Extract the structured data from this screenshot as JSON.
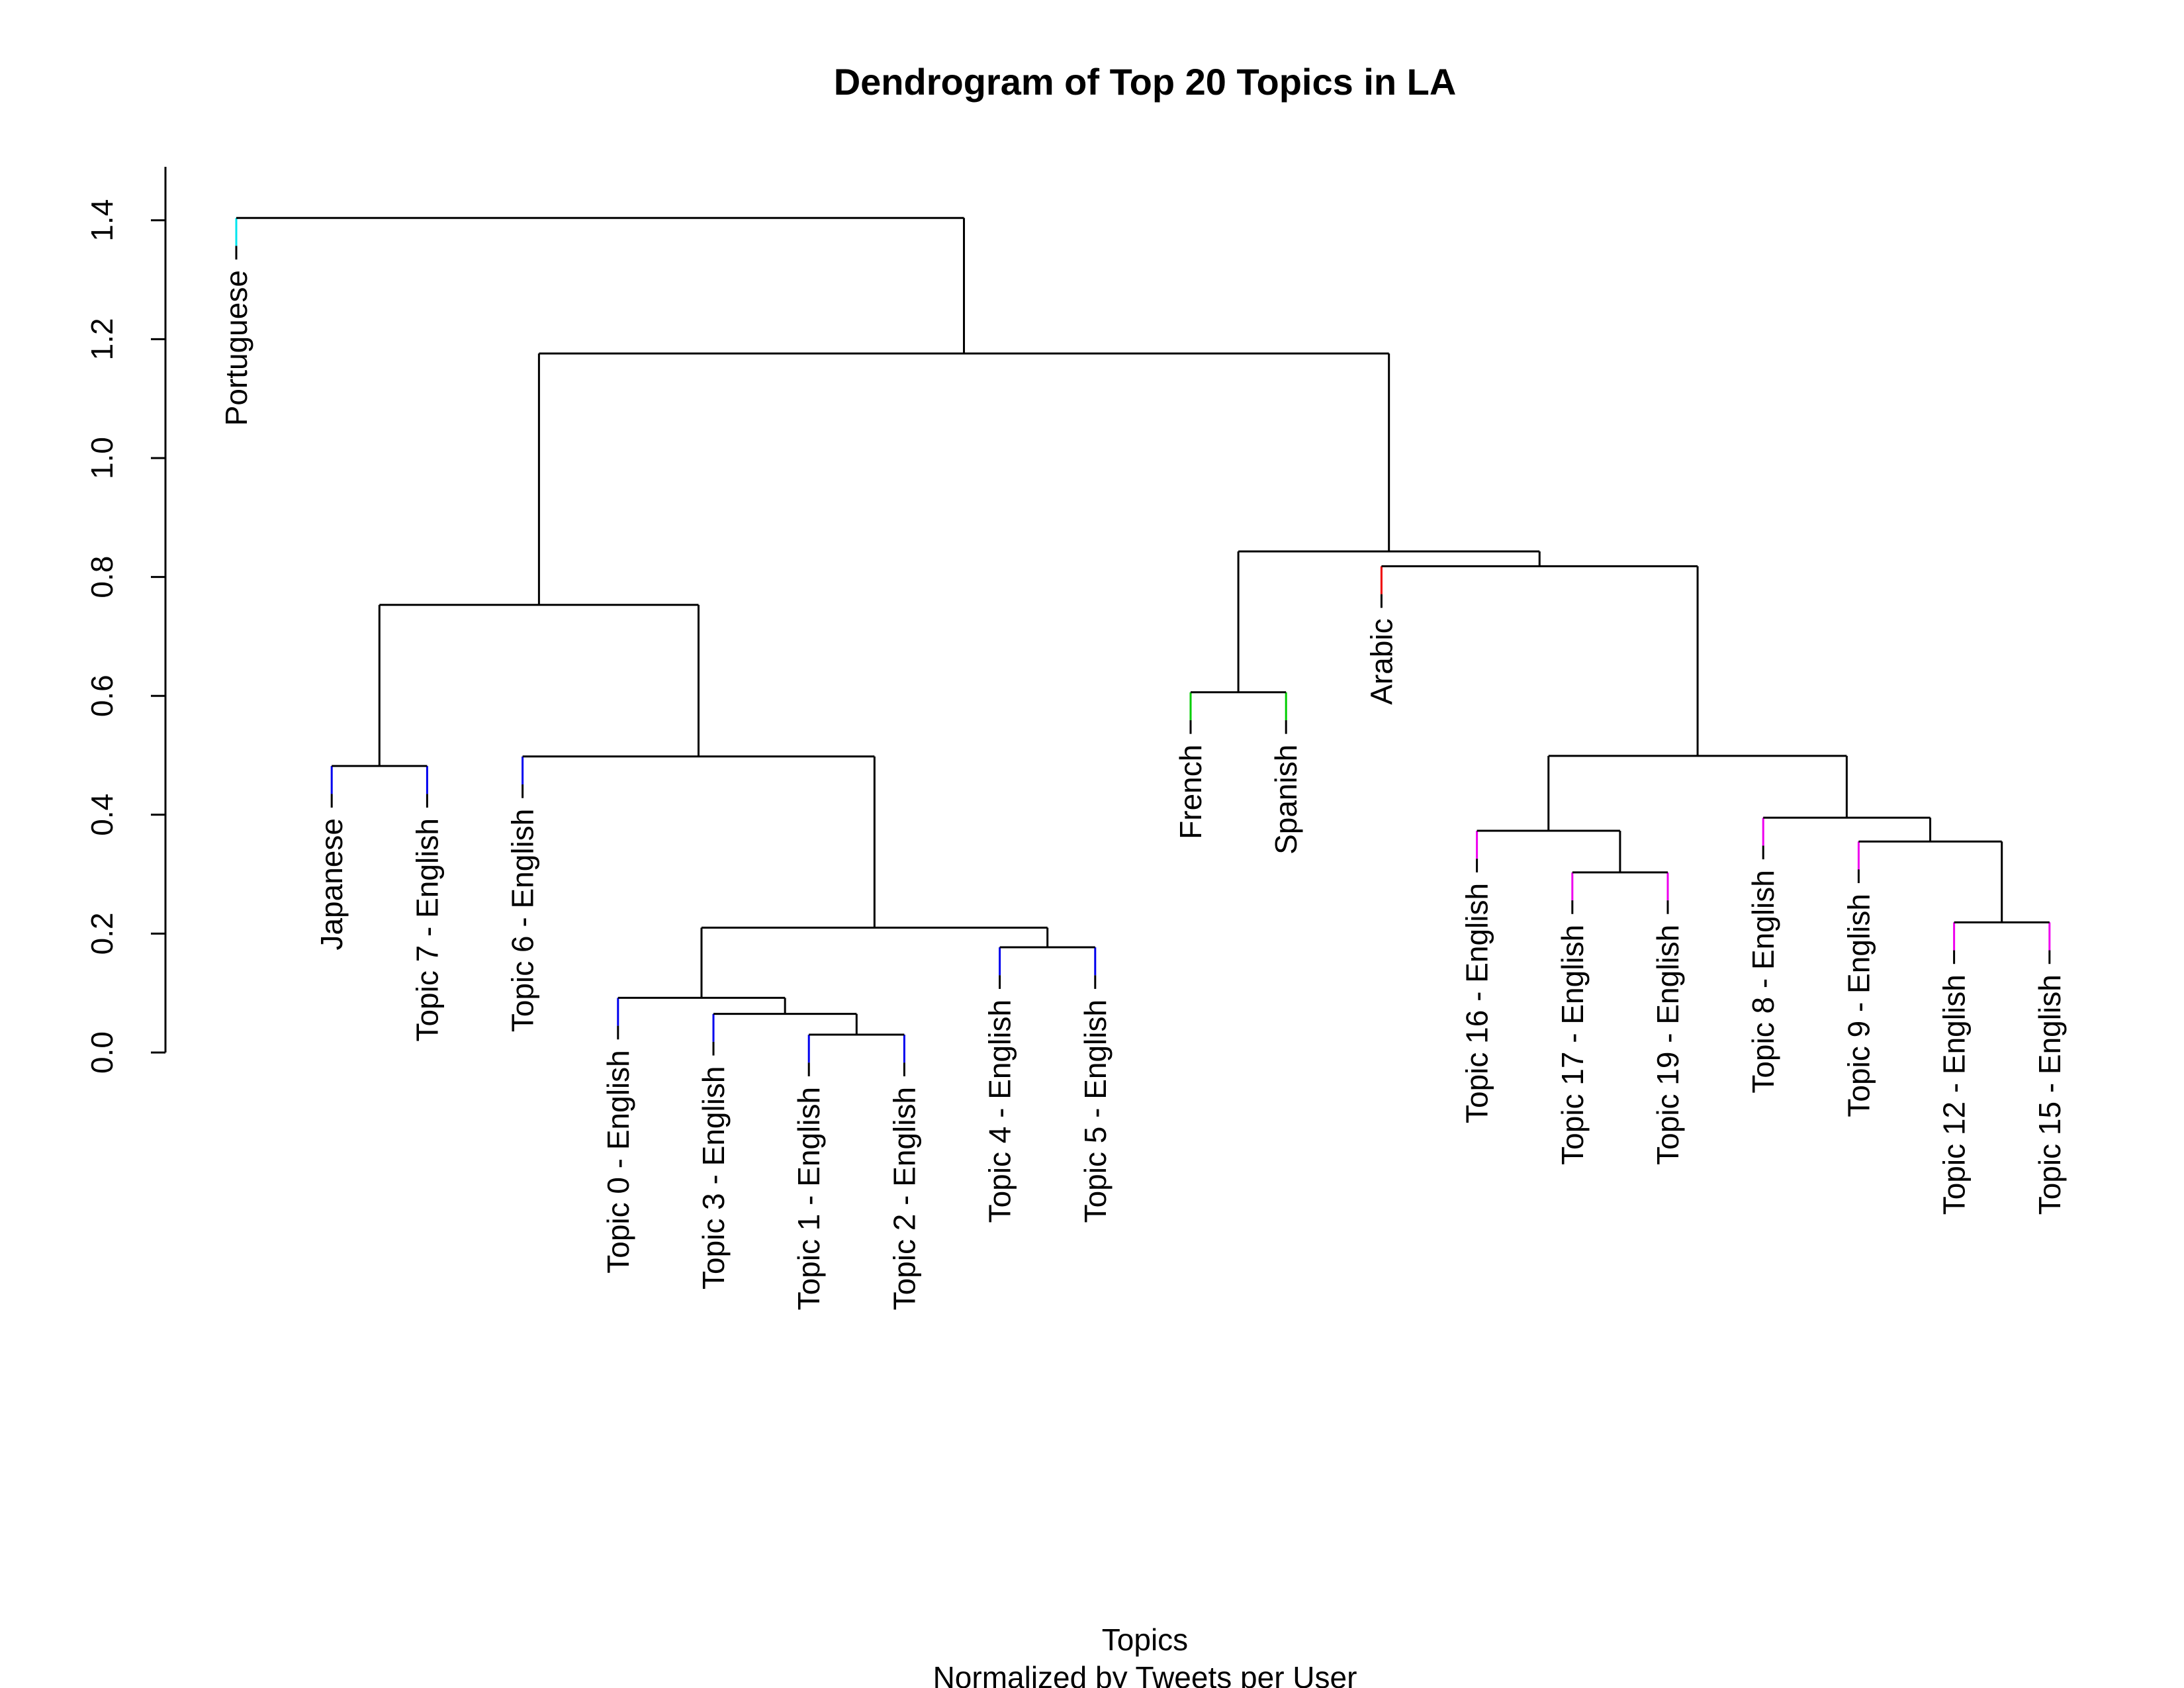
{
  "chart_data": {
    "type": "dendrogram",
    "title": "Dendrogram of Top 20 Topics in LA",
    "xlabel": "Topics",
    "sub_xlabel": "Normalized by Tweets per User",
    "ylabel": "",
    "ylim": [
      0,
      1.49
    ],
    "yticks": [
      0.0,
      0.2,
      0.4,
      0.6,
      0.8,
      1.0,
      1.2,
      1.4
    ],
    "ytick_labels": [
      "0.0",
      "0.2",
      "0.4",
      "0.6",
      "0.8",
      "1.0",
      "1.2",
      "1.4"
    ],
    "leaves": [
      {
        "label": "Portuguese",
        "color": "#00E5EE"
      },
      {
        "label": "Japanese",
        "color": "#0000EE"
      },
      {
        "label": "Topic 7 - English",
        "color": "#0000EE"
      },
      {
        "label": "Topic 6 - English",
        "color": "#0000EE"
      },
      {
        "label": "Topic 0 - English",
        "color": "#0000EE"
      },
      {
        "label": "Topic 3 - English",
        "color": "#0000EE"
      },
      {
        "label": "Topic 1 - English",
        "color": "#0000EE"
      },
      {
        "label": "Topic 2 - English",
        "color": "#0000EE"
      },
      {
        "label": "Topic 4 - English",
        "color": "#0000EE"
      },
      {
        "label": "Topic 5 - English",
        "color": "#0000EE"
      },
      {
        "label": "French",
        "color": "#00CD00"
      },
      {
        "label": "Spanish",
        "color": "#00CD00"
      },
      {
        "label": "Arabic",
        "color": "#EE0000"
      },
      {
        "label": "Topic 16 - English",
        "color": "#EE00EE"
      },
      {
        "label": "Topic 17 - English",
        "color": "#EE00EE"
      },
      {
        "label": "Topic 19 - English",
        "color": "#EE00EE"
      },
      {
        "label": "Topic 8 - English",
        "color": "#EE00EE"
      },
      {
        "label": "Topic 9 - English",
        "color": "#EE00EE"
      },
      {
        "label": "Topic 12 - English",
        "color": "#EE00EE"
      },
      {
        "label": "Topic 15 - English",
        "color": "#EE00EE"
      }
    ],
    "merges": [
      {
        "a": "L6",
        "b": "L7",
        "height": 0.03
      },
      {
        "a": "L5",
        "b": "M0",
        "height": 0.065
      },
      {
        "a": "L4",
        "b": "M1",
        "height": 0.092
      },
      {
        "a": "L8",
        "b": "L9",
        "height": 0.177
      },
      {
        "a": "M2",
        "b": "M3",
        "height": 0.21
      },
      {
        "a": "L3",
        "b": "M4",
        "height": 0.498
      },
      {
        "a": "L1",
        "b": "L2",
        "height": 0.482
      },
      {
        "a": "M6",
        "b": "M5",
        "height": 0.753
      },
      {
        "a": "L10",
        "b": "L11",
        "height": 0.606
      },
      {
        "a": "L18",
        "b": "L19",
        "height": 0.219
      },
      {
        "a": "L17",
        "b": "M9",
        "height": 0.355
      },
      {
        "a": "L16",
        "b": "M10",
        "height": 0.395
      },
      {
        "a": "L14",
        "b": "L15",
        "height": 0.303
      },
      {
        "a": "L13",
        "b": "M12",
        "height": 0.373
      },
      {
        "a": "M13",
        "b": "M11",
        "height": 0.499
      },
      {
        "a": "L12",
        "b": "M14",
        "height": 0.818
      },
      {
        "a": "M8",
        "b": "M15",
        "height": 0.843
      },
      {
        "a": "M7",
        "b": "M16",
        "height": 1.176
      },
      {
        "a": "L0",
        "b": "M17",
        "height": 1.404
      }
    ]
  }
}
